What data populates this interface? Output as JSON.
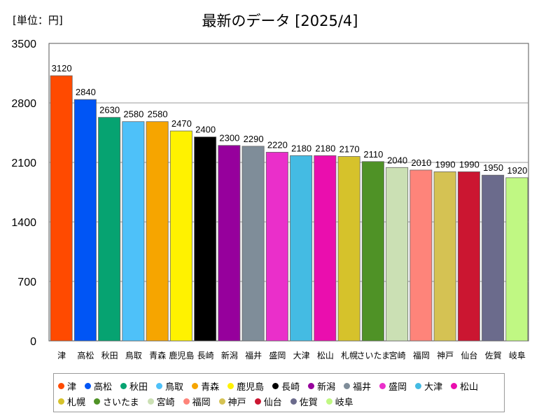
{
  "chart_data": {
    "type": "bar",
    "title": "最新のデータ [2025/4]",
    "unit_label": "[単位：円]",
    "ylim": [
      0,
      3500
    ],
    "yticks": [
      0,
      700,
      1400,
      2100,
      2800,
      3500
    ],
    "grid": true,
    "legend_position": "bottom",
    "categories": [
      "津",
      "高松",
      "秋田",
      "鳥取",
      "青森",
      "鹿児島",
      "長崎",
      "新潟",
      "福井",
      "盛岡",
      "大津",
      "松山",
      "札幌",
      "さいたま",
      "宮崎",
      "福岡",
      "神戸",
      "仙台",
      "佐賀",
      "岐阜"
    ],
    "values": [
      3120,
      2840,
      2630,
      2580,
      2580,
      2470,
      2400,
      2300,
      2290,
      2220,
      2180,
      2180,
      2170,
      2110,
      2040,
      2010,
      1990,
      1990,
      1950,
      1920
    ],
    "colors": [
      "#ff4a00",
      "#0055f5",
      "#06a371",
      "#4ec1f9",
      "#f6a500",
      "#fff200",
      "#000000",
      "#96009c",
      "#7f8d99",
      "#ea2fca",
      "#44bbe3",
      "#ea0eae",
      "#d6c22b",
      "#4f9226",
      "#cbe0b4",
      "#fe847a",
      "#d5c253",
      "#cb1631",
      "#6b6b8c",
      "#c0f883"
    ]
  }
}
